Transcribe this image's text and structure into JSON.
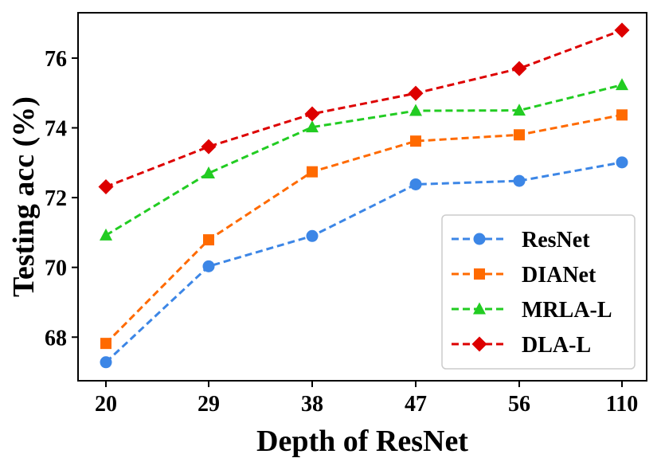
{
  "chart_data": {
    "type": "line",
    "title": "",
    "xlabel": "Depth of ResNet",
    "ylabel": "Testing acc (%)",
    "categories": [
      "20",
      "29",
      "38",
      "47",
      "56",
      "110"
    ],
    "ylim": [
      66.75,
      77.3
    ],
    "yticks": [
      68,
      70,
      72,
      74,
      76
    ],
    "grid": false,
    "legend_position": "bottom-right",
    "series": [
      {
        "name": "ResNet",
        "color": "#3c86e6",
        "marker": "circle",
        "values": [
          67.28,
          70.03,
          70.9,
          72.38,
          72.48,
          73.01
        ]
      },
      {
        "name": "DIANet",
        "color": "#ff6a00",
        "marker": "square",
        "values": [
          67.82,
          70.79,
          72.74,
          73.62,
          73.8,
          74.37
        ]
      },
      {
        "name": "MRLA-L",
        "color": "#22cc22",
        "marker": "triangle",
        "values": [
          70.92,
          72.7,
          74.02,
          74.49,
          74.5,
          75.23
        ]
      },
      {
        "name": "DLA-L",
        "color": "#dd0000",
        "marker": "diamond",
        "values": [
          72.31,
          73.46,
          74.4,
          74.99,
          75.7,
          76.8
        ]
      }
    ]
  }
}
